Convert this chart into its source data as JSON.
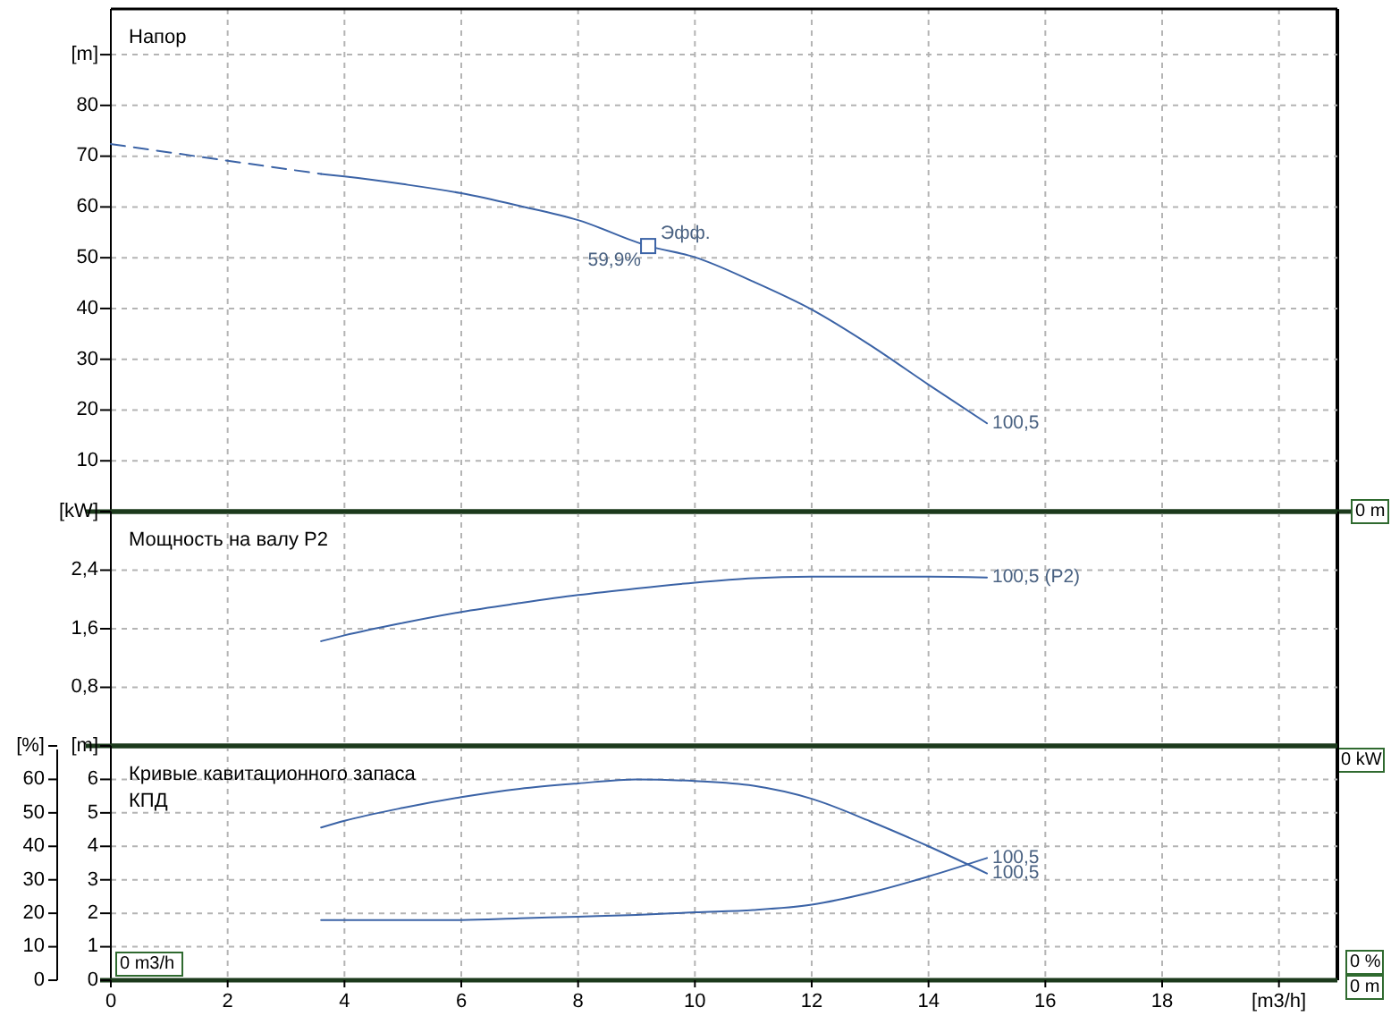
{
  "chart_data": [
    {
      "type": "line",
      "title": "Напор",
      "xlim": [
        0,
        21
      ],
      "ylim": [
        0,
        99
      ],
      "yticks": [
        10,
        20,
        30,
        40,
        50,
        60,
        70,
        80,
        {
          "value": 90,
          "label": "[m]"
        }
      ],
      "grid": true,
      "tick_labels": "y",
      "series": [
        {
          "color": "#3b63a6",
          "line_style": "dashed",
          "x": [
            0,
            2,
            3.6
          ],
          "values": [
            72.4,
            69.1,
            66.5
          ]
        },
        {
          "name": "100,5",
          "color": "#3b63a6",
          "x": [
            3.6,
            4,
            5,
            6,
            7,
            8,
            9.2,
            10,
            11,
            12,
            13,
            14,
            15
          ],
          "values": [
            66.5,
            66.0,
            64.5,
            62.7,
            60.2,
            57.4,
            52.3,
            50.1,
            45.3,
            39.8,
            32.8,
            25.0,
            17.4
          ]
        },
        {
          "type": "scatter",
          "marker": "square",
          "color": "#3b63a6",
          "x": [
            9.2
          ],
          "values": [
            52.3
          ]
        }
      ],
      "annotations": [
        {
          "text": "Эфф.",
          "x": 9.2,
          "y": 52.3
        },
        {
          "text": "59,9%",
          "x": 9.2,
          "y": 52.3
        },
        "0 m"
      ]
    },
    {
      "type": "line",
      "title": "Мощность на валу P2",
      "xlim": [
        0,
        21
      ],
      "ylim": [
        0,
        3.2
      ],
      "yticks": [
        {
          "value": 0.8,
          "label": "0,8"
        },
        {
          "value": 1.6,
          "label": "1,6"
        },
        {
          "value": 2.4,
          "label": "2,4"
        },
        {
          "value": 3.2,
          "label": "[kW]"
        }
      ],
      "grid": true,
      "tick_labels": "y",
      "series": [
        {
          "name": "100,5 (P2)",
          "color": "#3b63a6",
          "x": [
            3.6,
            4,
            5,
            6,
            7,
            8,
            9,
            10,
            11,
            12,
            13,
            14,
            15
          ],
          "values": [
            1.43,
            1.51,
            1.68,
            1.83,
            1.95,
            2.06,
            2.15,
            2.23,
            2.29,
            2.31,
            2.31,
            2.31,
            2.3
          ]
        }
      ],
      "annotations": [
        "0 kW"
      ]
    },
    {
      "type": "line",
      "title": "Кривые кавитационного запаса",
      "subtitle": "КПД",
      "xlim": [
        0,
        21
      ],
      "xticks": [
        0,
        2,
        4,
        6,
        8,
        10,
        12,
        14,
        16,
        18,
        {
          "value": 20,
          "label": "[m3/h]"
        }
      ],
      "ylim": [
        0,
        7
      ],
      "yticks": [
        0,
        1,
        2,
        3,
        4,
        5,
        6,
        {
          "value": 7,
          "label": "[m]"
        }
      ],
      "y2lim": [
        0,
        70
      ],
      "y2ticks": [
        0,
        10,
        20,
        30,
        40,
        50,
        60,
        {
          "value": 70,
          "label": "[%]"
        }
      ],
      "grid": true,
      "series": [
        {
          "name": "100,5",
          "color": "#3b63a6",
          "x": [
            3.6,
            4,
            5,
            6,
            7,
            8,
            9,
            10,
            11,
            12,
            13,
            14,
            15
          ],
          "values": [
            1.8,
            1.8,
            1.8,
            1.8,
            1.85,
            1.9,
            1.95,
            2.03,
            2.1,
            2.26,
            2.62,
            3.1,
            3.65
          ]
        },
        {
          "name": "100,5",
          "axis": "y2",
          "color": "#3b63a6",
          "x": [
            3.6,
            4,
            5,
            6,
            7,
            8,
            9,
            10,
            11,
            12,
            13,
            14,
            15
          ],
          "values": [
            45.6,
            47.6,
            51.5,
            54.7,
            57.2,
            58.8,
            60.0,
            59.5,
            58.1,
            54.2,
            47.5,
            40.0,
            31.9
          ]
        }
      ],
      "annotations": [
        "0 m3/h",
        "0 %",
        "0 m"
      ]
    }
  ]
}
